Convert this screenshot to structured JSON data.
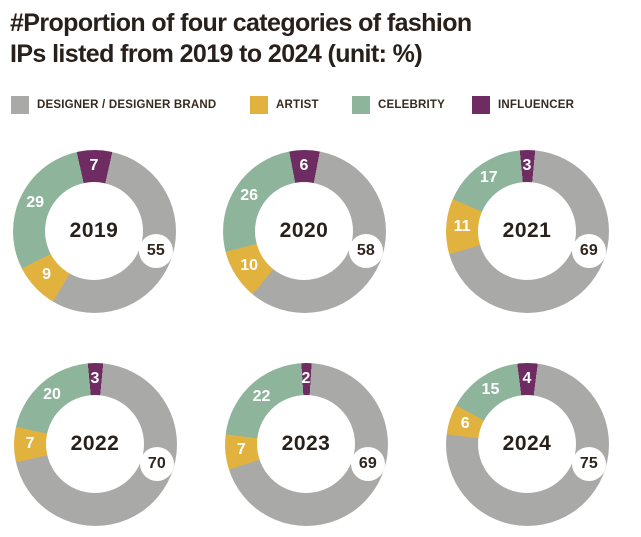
{
  "header": {
    "title": "#Proportion of four categories of fashion\nIPs listed from 2019 to 2024 (unit: %)"
  },
  "colors": {
    "designer": "#a9a9a7",
    "artist": "#e1b23e",
    "celebrity": "#8eb49b",
    "influencer": "#6e2c63",
    "text_dark": "#2f261f",
    "background": "#ffffff"
  },
  "legend": {
    "items": [
      {
        "key": "designer",
        "label": "DESIGNER / DESIGNER BRAND",
        "color": "#a9a9a7"
      },
      {
        "key": "artist",
        "label": "ARTIST",
        "color": "#e1b23e"
      },
      {
        "key": "celebrity",
        "label": "CELEBRITY",
        "color": "#8eb49b"
      },
      {
        "key": "influencer",
        "label": "INFLUENCER",
        "color": "#6e2c63"
      }
    ]
  },
  "chart_data": {
    "type": "pie",
    "subtype": "donut-small-multiples",
    "unit": "%",
    "title": "#Proportion of four categories of fashion IPs listed from 2019 to 2024 (unit: %)",
    "categories": [
      "DESIGNER / DESIGNER BRAND",
      "ARTIST",
      "CELEBRITY",
      "INFLUENCER"
    ],
    "legend_position": "top",
    "slice_order_clockwise_from_top": [
      "influencer",
      "designer",
      "artist",
      "celebrity"
    ],
    "charts": [
      {
        "year": "2019",
        "values": {
          "designer": 55,
          "artist": 9,
          "celebrity": 29,
          "influencer": 7
        }
      },
      {
        "year": "2020",
        "values": {
          "designer": 58,
          "artist": 10,
          "celebrity": 26,
          "influencer": 6
        }
      },
      {
        "year": "2021",
        "values": {
          "designer": 69,
          "artist": 11,
          "celebrity": 17,
          "influencer": 3
        }
      },
      {
        "year": "2022",
        "values": {
          "designer": 70,
          "artist": 7,
          "celebrity": 20,
          "influencer": 3
        }
      },
      {
        "year": "2023",
        "values": {
          "designer": 69,
          "artist": 7,
          "celebrity": 22,
          "influencer": 2
        }
      },
      {
        "year": "2024",
        "values": {
          "designer": 75,
          "artist": 6,
          "celebrity": 15,
          "influencer": 4
        }
      }
    ]
  }
}
